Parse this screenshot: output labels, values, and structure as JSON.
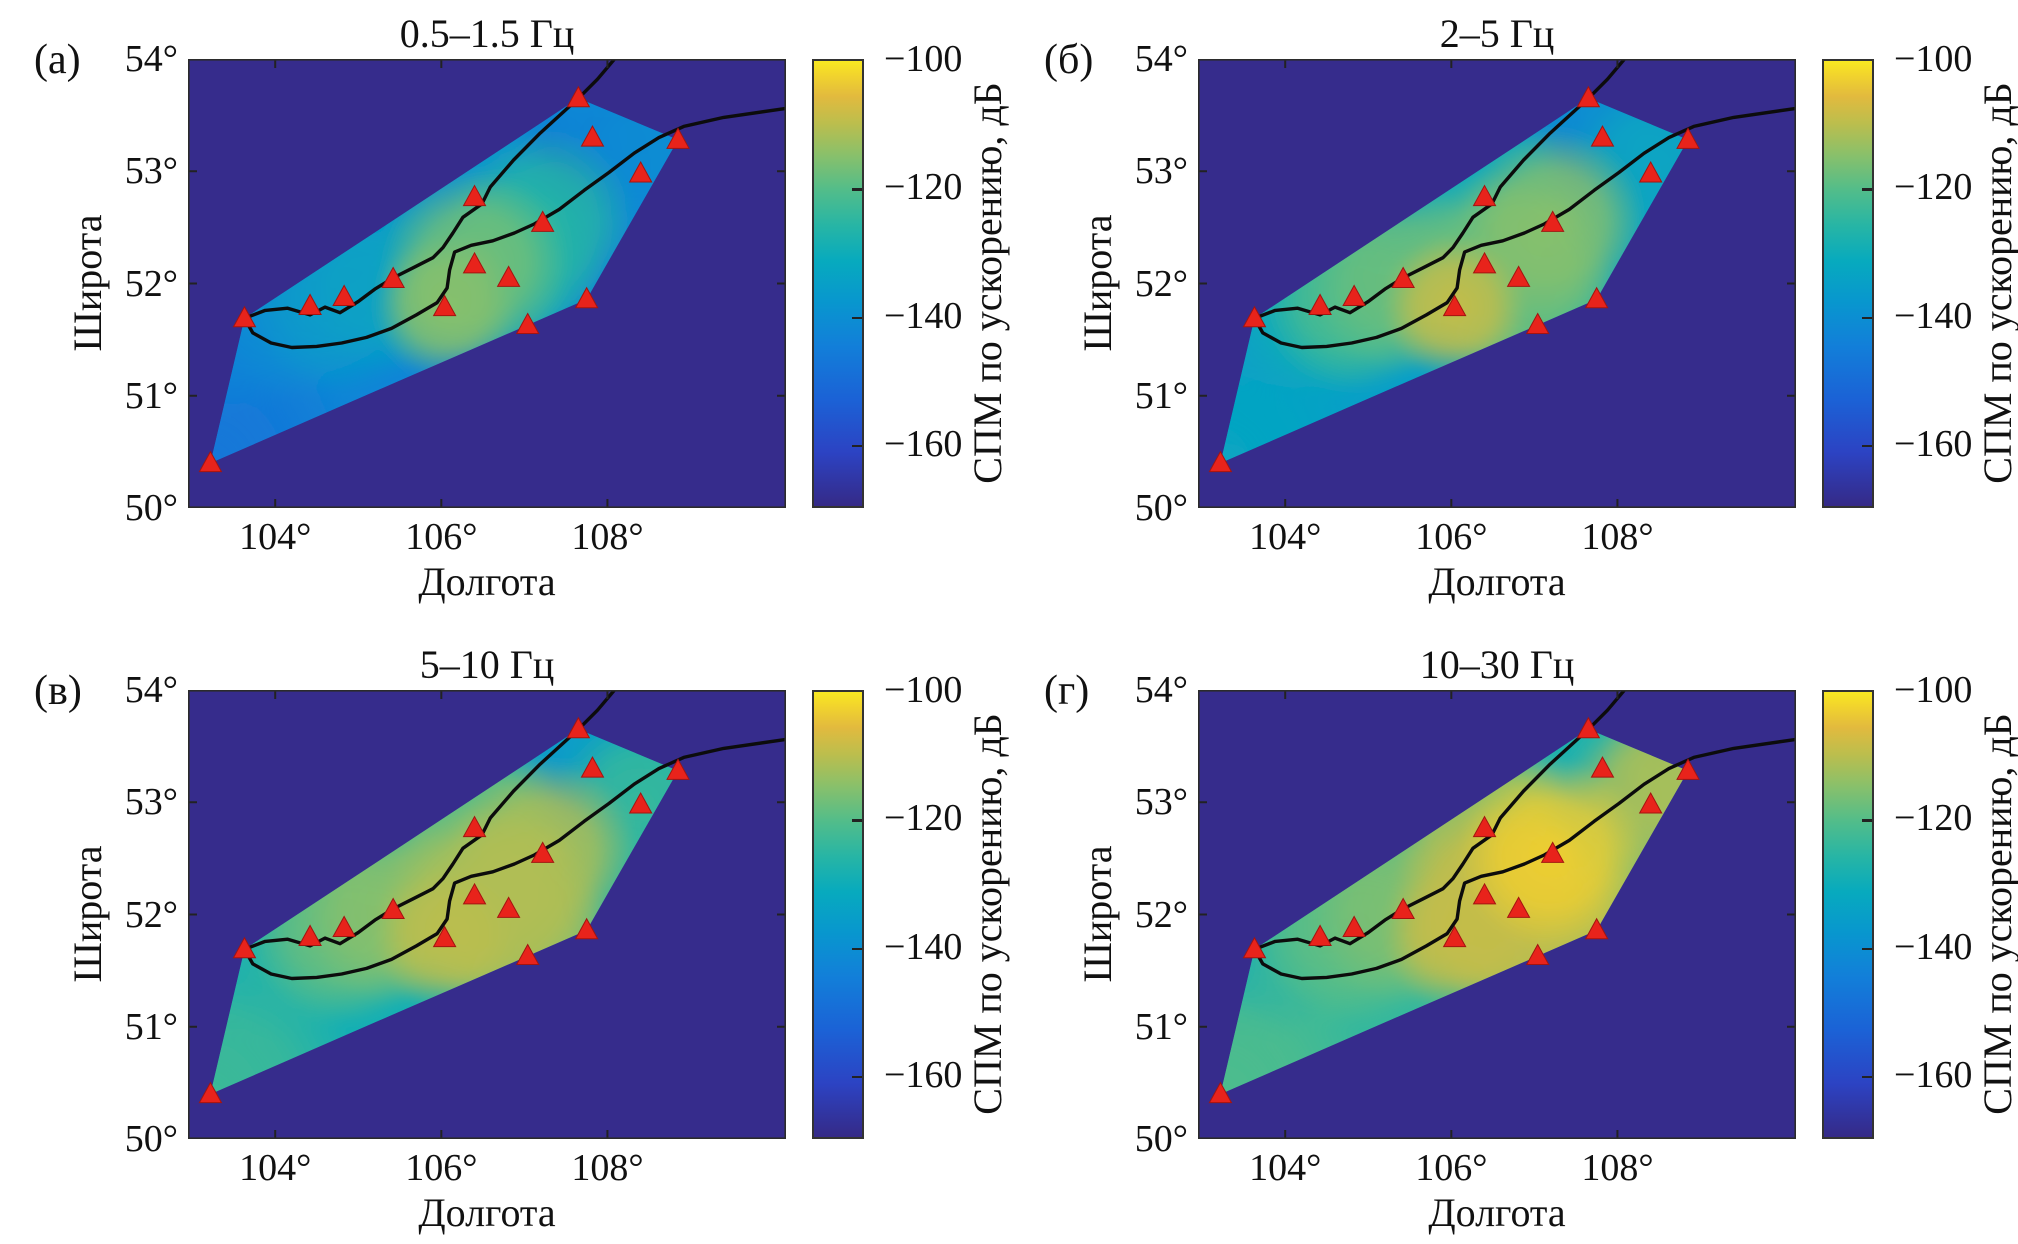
{
  "figure": {
    "ylabel": "Широта",
    "xlabel": "Долгота",
    "colorbar_label": "СПМ по ускорению, дБ",
    "colorbar_tick_labels": [
      "−100",
      "−120",
      "−140",
      "−160"
    ],
    "x_tick_labels": [
      "104°",
      "106°",
      "108°"
    ],
    "y_tick_labels": [
      "54°",
      "53°",
      "52°",
      "51°",
      "50°"
    ]
  },
  "panels": [
    {
      "letter": "(а)",
      "title": "0.5–1.5 Гц"
    },
    {
      "letter": "(б)",
      "title": "2–5 Гц"
    },
    {
      "letter": "(в)",
      "title": "5–10 Гц"
    },
    {
      "letter": "(г)",
      "title": "10–30 Гц"
    }
  ],
  "chart_data": {
    "type": "heatmap",
    "description": "Interpolated maps of seismic noise power spectral density (acceleration PSD, dB) over the Lake Baikal region in four frequency bands; red triangles are seismic stations, black curve is the lake shoreline.",
    "xlabel": "Долгота",
    "ylabel": "Широта",
    "xlim_deg": [
      102.95,
      110.15
    ],
    "ylim_deg": [
      50,
      54
    ],
    "x_ticks_deg": [
      104,
      106,
      108
    ],
    "y_ticks_deg": [
      54,
      53,
      52,
      51,
      50
    ],
    "colorbar": {
      "label": "СПМ по ускорению, дБ",
      "min_db": -170,
      "max_db": -100,
      "tick_db": [
        -100,
        -120,
        -140,
        -160
      ],
      "colormap": "parula"
    },
    "markers": {
      "symbol": "triangle",
      "color": "#e8231b",
      "meaning": "seismic station"
    },
    "background_color": "#362c8c",
    "stations_lonlat": [
      [
        107.65,
        53.65
      ],
      [
        107.82,
        53.3
      ],
      [
        108.85,
        53.28
      ],
      [
        108.4,
        52.98
      ],
      [
        106.4,
        52.77
      ],
      [
        107.22,
        52.54
      ],
      [
        106.4,
        52.17
      ],
      [
        106.81,
        52.05
      ],
      [
        105.42,
        52.04
      ],
      [
        104.83,
        51.88
      ],
      [
        104.42,
        51.8
      ],
      [
        103.63,
        51.69
      ],
      [
        106.04,
        51.79
      ],
      [
        107.04,
        51.63
      ],
      [
        107.75,
        51.86
      ],
      [
        103.22,
        50.4
      ]
    ],
    "subplots": [
      {
        "label": "(а)",
        "band": "0.5–1.5 Гц",
        "hull_base_db": -143,
        "station_psd_db": [
          -142,
          -157,
          -141,
          -142,
          -139,
          -126,
          -117,
          -128,
          -134,
          -136,
          -140,
          -143,
          -115,
          -146,
          -144,
          -147
        ]
      },
      {
        "label": "(б)",
        "band": "2–5 Гц",
        "hull_base_db": -135,
        "station_psd_db": [
          -140,
          -152,
          -137,
          -133,
          -132,
          -115,
          -118,
          -118,
          -118,
          -121,
          -130,
          -136,
          -109,
          -122,
          -133,
          -133
        ]
      },
      {
        "label": "(в)",
        "band": "5–10 Гц",
        "hull_base_db": -129,
        "station_psd_db": [
          -135,
          -146,
          -131,
          -124,
          -119,
          -111,
          -112,
          -111,
          -115,
          -118,
          -125,
          -131,
          -110,
          -115,
          -126,
          -123
        ]
      },
      {
        "label": "(г)",
        "band": "10–30 Гц",
        "hull_base_db": -124,
        "station_psd_db": [
          -127,
          -136,
          -112,
          -112,
          -113,
          -103,
          -109,
          -110,
          -116,
          -119,
          -122,
          -132,
          -109,
          -111,
          -112,
          -121
        ]
      }
    ],
    "shoreline_north": [
      [
        103.63,
        51.69
      ],
      [
        103.88,
        51.76
      ],
      [
        104.15,
        51.78
      ],
      [
        104.42,
        51.72
      ],
      [
        104.6,
        51.79
      ],
      [
        104.78,
        51.74
      ],
      [
        105.0,
        51.84
      ],
      [
        105.2,
        51.95
      ],
      [
        105.42,
        52.05
      ],
      [
        105.66,
        52.14
      ],
      [
        105.9,
        52.23
      ],
      [
        106.02,
        52.32
      ],
      [
        106.14,
        52.45
      ],
      [
        106.26,
        52.59
      ],
      [
        106.49,
        52.71
      ],
      [
        106.59,
        52.86
      ],
      [
        106.87,
        53.1
      ],
      [
        107.19,
        53.34
      ],
      [
        107.65,
        53.65
      ],
      [
        107.88,
        53.82
      ],
      [
        108.2,
        54.1
      ]
    ],
    "shoreline_south": [
      [
        103.63,
        51.69
      ],
      [
        103.73,
        51.56
      ],
      [
        103.95,
        51.47
      ],
      [
        104.2,
        51.43
      ],
      [
        104.5,
        51.44
      ],
      [
        104.8,
        51.47
      ],
      [
        105.1,
        51.52
      ],
      [
        105.4,
        51.6
      ],
      [
        105.7,
        51.72
      ],
      [
        105.95,
        51.83
      ],
      [
        106.07,
        51.96
      ],
      [
        106.1,
        52.12
      ],
      [
        106.16,
        52.28
      ],
      [
        106.36,
        52.34
      ],
      [
        106.62,
        52.38
      ],
      [
        106.88,
        52.45
      ],
      [
        107.12,
        52.53
      ],
      [
        107.42,
        52.66
      ],
      [
        107.72,
        52.83
      ],
      [
        108.02,
        52.99
      ],
      [
        108.32,
        53.16
      ],
      [
        108.62,
        53.3
      ],
      [
        108.92,
        53.4
      ],
      [
        109.4,
        53.48
      ],
      [
        110.15,
        53.56
      ]
    ]
  }
}
